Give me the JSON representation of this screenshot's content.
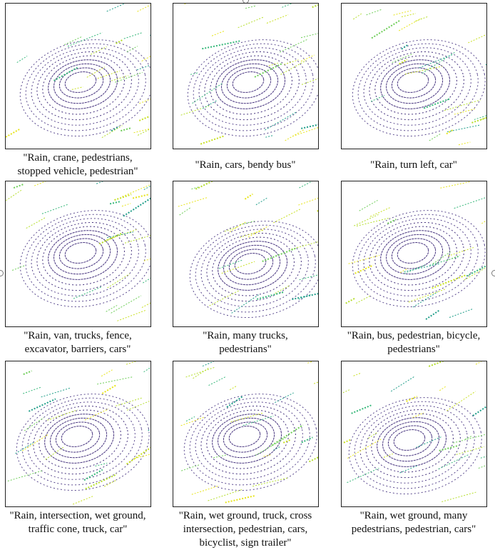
{
  "panels": [
    {
      "caption": [
        "\"Rain, crane, pedestrians,",
        "stopped vehicle, pedestrian\""
      ]
    },
    {
      "caption": [
        "\"Rain, cars, bendy bus\""
      ]
    },
    {
      "caption": [
        "\"Rain, turn left, car\""
      ]
    },
    {
      "caption": [
        "\"Rain, van, trucks, fence,",
        "excavator, barriers, cars\""
      ]
    },
    {
      "caption": [
        "\"Rain, many trucks,",
        "pedestrians\""
      ]
    },
    {
      "caption": [
        "\"Rain, bus, pedestrian, bicycle,",
        "pedestrians\""
      ]
    },
    {
      "caption": [
        "\"Rain, intersection, wet ground,",
        "traffic cone, truck, car\""
      ]
    },
    {
      "caption": [
        "\"Rain, wet ground, truck, cross",
        "intersection, pedestrian, cars,",
        "bicyclist, sign trailer\""
      ]
    },
    {
      "caption": [
        "\"Rain, wet ground, many",
        "pedestrians, pedestrian, cars\""
      ]
    }
  ]
}
